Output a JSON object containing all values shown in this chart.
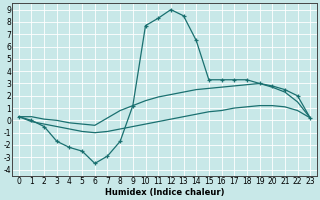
{
  "xlabel": "Humidex (Indice chaleur)",
  "bg_color": "#c8e8e8",
  "line_color": "#1a7070",
  "xlim": [
    -0.5,
    23.5
  ],
  "ylim": [
    -4.5,
    9.5
  ],
  "xticks": [
    0,
    1,
    2,
    3,
    4,
    5,
    6,
    7,
    8,
    9,
    10,
    11,
    12,
    13,
    14,
    15,
    16,
    17,
    18,
    19,
    20,
    21,
    22,
    23
  ],
  "yticks": [
    -4,
    -3,
    -2,
    -1,
    0,
    1,
    2,
    3,
    4,
    5,
    6,
    7,
    8,
    9
  ],
  "curve1_x": [
    0,
    1,
    2,
    3,
    4,
    5,
    6,
    7,
    8,
    9,
    10,
    11,
    12,
    13,
    14,
    15,
    16,
    17,
    18,
    19,
    20,
    21,
    22,
    23
  ],
  "curve1_y": [
    0.3,
    0.0,
    -0.5,
    -1.7,
    -2.2,
    -2.5,
    -3.5,
    -2.9,
    -1.7,
    1.2,
    7.7,
    8.3,
    9.0,
    8.5,
    6.5,
    3.3,
    3.3,
    3.3,
    3.3,
    3.0,
    2.8,
    2.5,
    2.0,
    0.2
  ],
  "curve2_x": [
    0,
    1,
    2,
    3,
    4,
    5,
    6,
    7,
    8,
    9,
    10,
    11,
    12,
    13,
    14,
    15,
    16,
    17,
    18,
    19,
    20,
    21,
    22,
    23
  ],
  "curve2_y": [
    0.3,
    0.3,
    0.1,
    0.0,
    -0.2,
    -0.3,
    -0.4,
    0.2,
    0.8,
    1.2,
    1.6,
    1.9,
    2.1,
    2.3,
    2.5,
    2.6,
    2.7,
    2.8,
    2.9,
    3.0,
    2.7,
    2.3,
    1.5,
    0.2
  ],
  "curve3_x": [
    0,
    1,
    2,
    3,
    4,
    5,
    6,
    7,
    8,
    9,
    10,
    11,
    12,
    13,
    14,
    15,
    16,
    17,
    18,
    19,
    20,
    21,
    22,
    23
  ],
  "curve3_y": [
    0.3,
    -0.1,
    -0.3,
    -0.5,
    -0.7,
    -0.9,
    -1.0,
    -0.9,
    -0.7,
    -0.5,
    -0.3,
    -0.1,
    0.1,
    0.3,
    0.5,
    0.7,
    0.8,
    1.0,
    1.1,
    1.2,
    1.2,
    1.1,
    0.8,
    0.2
  ]
}
